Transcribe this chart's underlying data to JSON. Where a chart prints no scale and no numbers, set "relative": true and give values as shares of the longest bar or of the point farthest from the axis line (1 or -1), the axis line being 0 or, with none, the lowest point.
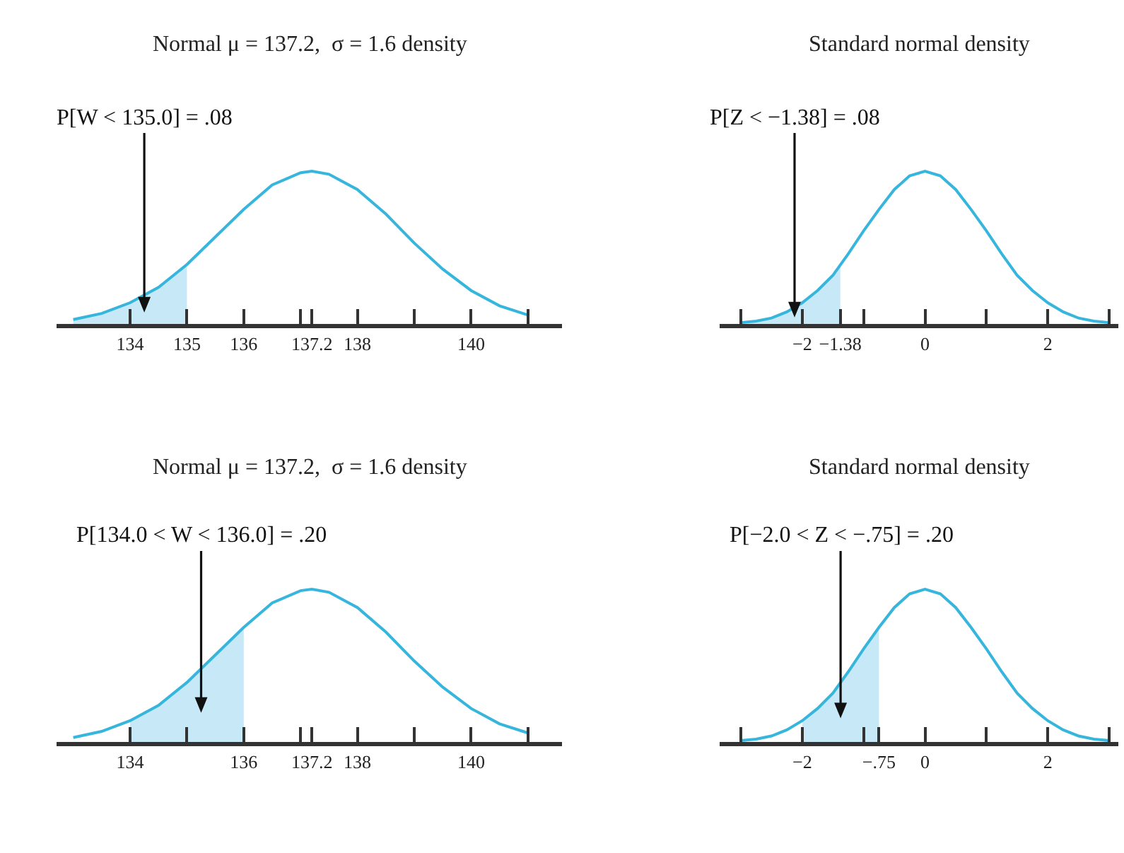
{
  "chart_data": [
    {
      "type": "line",
      "relative": true,
      "title": "Normal μ = 137.2,  σ = 1.6 density",
      "xlim": [
        132.7,
        141.6
      ],
      "xticks": [
        {
          "value": 134,
          "label": "134"
        },
        {
          "value": 135,
          "label": "135"
        },
        {
          "value": 136,
          "label": "136"
        },
        {
          "value": 137,
          "label": null
        },
        {
          "value": 137.2,
          "label": "137.2"
        },
        {
          "value": 138,
          "label": "138"
        },
        {
          "value": 139,
          "label": null
        },
        {
          "value": 140,
          "label": "140"
        },
        {
          "value": 141,
          "label": null
        }
      ],
      "series": [
        {
          "type": "area",
          "color": "#c6e8f7",
          "x": [
            133,
            133.5,
            134,
            134.5,
            135
          ],
          "values": [
            0.03,
            0.07,
            0.14,
            0.24,
            0.39
          ]
        },
        {
          "type": "line",
          "color": "#36b5dd",
          "x": [
            133,
            133.5,
            134,
            134.5,
            135,
            135.5,
            136,
            136.5,
            137,
            137.2,
            137.5,
            138,
            138.5,
            139,
            139.5,
            140,
            140.5,
            141
          ],
          "values": [
            0.03,
            0.07,
            0.14,
            0.24,
            0.39,
            0.57,
            0.75,
            0.91,
            0.99,
            1,
            0.98,
            0.88,
            0.72,
            0.53,
            0.36,
            0.22,
            0.12,
            0.06
          ]
        }
      ],
      "annotations": [
        "P[W < 135.0] = .08"
      ]
    },
    {
      "type": "line",
      "relative": true,
      "title": "Standard normal density",
      "xlim": [
        -3.35,
        3.15
      ],
      "xticks": [
        {
          "value": -3,
          "label": null
        },
        {
          "value": -2,
          "label": "−2"
        },
        {
          "value": -1.38,
          "label": "−1.38"
        },
        {
          "value": -1,
          "label": null
        },
        {
          "value": 0,
          "label": "0"
        },
        {
          "value": 1,
          "label": null
        },
        {
          "value": 2,
          "label": "2"
        },
        {
          "value": 3,
          "label": null
        }
      ],
      "series": [
        {
          "type": "area",
          "color": "#c6e8f7",
          "x": [
            -3,
            -2.75,
            -2.5,
            -2.25,
            -2,
            -1.75,
            -1.5,
            -1.38
          ],
          "values": [
            0.01,
            0.02,
            0.04,
            0.08,
            0.14,
            0.22,
            0.32,
            0.39
          ]
        },
        {
          "type": "line",
          "color": "#36b5dd",
          "x": [
            -3,
            -2.75,
            -2.5,
            -2.25,
            -2,
            -1.75,
            -1.5,
            -1.25,
            -1,
            -0.75,
            -0.5,
            -0.25,
            0,
            0.25,
            0.5,
            0.75,
            1,
            1.25,
            1.5,
            1.75,
            2,
            2.25,
            2.5,
            2.75,
            3
          ],
          "values": [
            0.01,
            0.02,
            0.04,
            0.08,
            0.14,
            0.22,
            0.32,
            0.46,
            0.61,
            0.75,
            0.88,
            0.97,
            1,
            0.97,
            0.88,
            0.75,
            0.61,
            0.46,
            0.32,
            0.22,
            0.14,
            0.08,
            0.04,
            0.02,
            0.01
          ]
        }
      ],
      "annotations": [
        "P[Z < −1.38] = .08"
      ]
    },
    {
      "type": "line",
      "relative": true,
      "title": "Normal μ = 137.2,  σ = 1.6 density",
      "xlim": [
        132.7,
        141.6
      ],
      "xticks": [
        {
          "value": 134,
          "label": "134"
        },
        {
          "value": 135,
          "label": null
        },
        {
          "value": 136,
          "label": "136"
        },
        {
          "value": 137,
          "label": null
        },
        {
          "value": 137.2,
          "label": "137.2"
        },
        {
          "value": 138,
          "label": "138"
        },
        {
          "value": 139,
          "label": null
        },
        {
          "value": 140,
          "label": "140"
        },
        {
          "value": 141,
          "label": null
        }
      ],
      "series": [
        {
          "type": "area",
          "color": "#c6e8f7",
          "x": [
            134,
            134.5,
            135,
            135.5,
            136
          ],
          "values": [
            0.14,
            0.24,
            0.39,
            0.57,
            0.75
          ]
        },
        {
          "type": "line",
          "color": "#36b5dd",
          "x": [
            133,
            133.5,
            134,
            134.5,
            135,
            135.5,
            136,
            136.5,
            137,
            137.2,
            137.5,
            138,
            138.5,
            139,
            139.5,
            140,
            140.5,
            141
          ],
          "values": [
            0.03,
            0.07,
            0.14,
            0.24,
            0.39,
            0.57,
            0.75,
            0.91,
            0.99,
            1,
            0.98,
            0.88,
            0.72,
            0.53,
            0.36,
            0.22,
            0.12,
            0.06
          ]
        }
      ],
      "annotations": [
        "P[134.0 < W < 136.0] = .20"
      ]
    },
    {
      "type": "line",
      "relative": true,
      "title": "Standard normal density",
      "xlim": [
        -3.35,
        3.15
      ],
      "xticks": [
        {
          "value": -3,
          "label": null
        },
        {
          "value": -2,
          "label": "−2"
        },
        {
          "value": -1,
          "label": null
        },
        {
          "value": -0.75,
          "label": "−.75"
        },
        {
          "value": 0,
          "label": "0"
        },
        {
          "value": 1,
          "label": null
        },
        {
          "value": 2,
          "label": "2"
        },
        {
          "value": 3,
          "label": null
        }
      ],
      "series": [
        {
          "type": "area",
          "color": "#c6e8f7",
          "x": [
            -2,
            -1.75,
            -1.5,
            -1.25,
            -1,
            -0.75
          ],
          "values": [
            0.14,
            0.22,
            0.32,
            0.46,
            0.61,
            0.75
          ]
        },
        {
          "type": "line",
          "color": "#36b5dd",
          "x": [
            -3,
            -2.75,
            -2.5,
            -2.25,
            -2,
            -1.75,
            -1.5,
            -1.25,
            -1,
            -0.75,
            -0.5,
            -0.25,
            0,
            0.25,
            0.5,
            0.75,
            1,
            1.25,
            1.5,
            1.75,
            2,
            2.25,
            2.5,
            2.75,
            3
          ],
          "values": [
            0.01,
            0.02,
            0.04,
            0.08,
            0.14,
            0.22,
            0.32,
            0.46,
            0.61,
            0.75,
            0.88,
            0.97,
            1,
            0.97,
            0.88,
            0.75,
            0.61,
            0.46,
            0.32,
            0.22,
            0.14,
            0.08,
            0.04,
            0.02,
            0.01
          ]
        }
      ],
      "annotations": [
        "P[−2.0 < Z < −.75] = .20"
      ]
    }
  ]
}
